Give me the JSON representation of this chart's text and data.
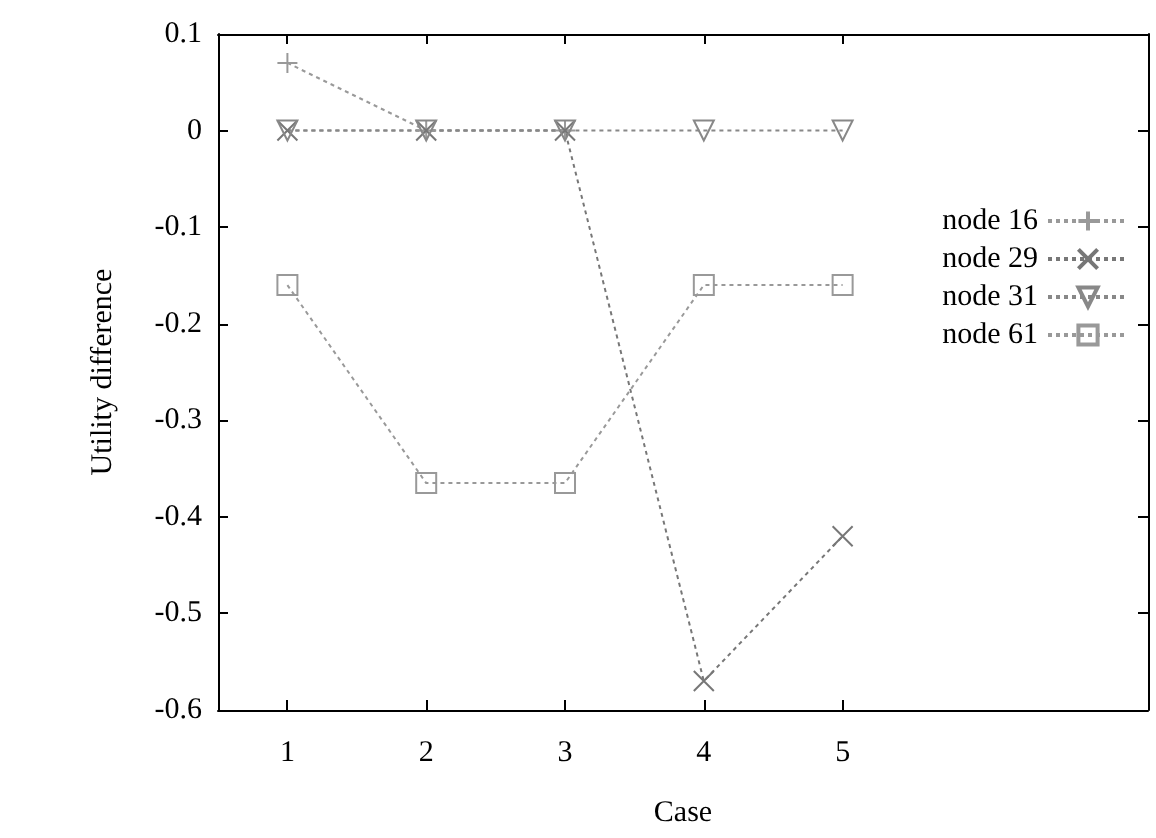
{
  "chart_data": {
    "type": "line",
    "xlabel": "Case",
    "ylabel": "Utility difference",
    "x": [
      1,
      2,
      3,
      4,
      5
    ],
    "xlim": [
      0.5,
      7.2
    ],
    "xticks": [
      1,
      2,
      3,
      4,
      5
    ],
    "ylim": [
      -0.6,
      0.1
    ],
    "yticks": [
      -0.6,
      -0.5,
      -0.4,
      -0.3,
      -0.2,
      -0.1,
      0,
      0.1
    ],
    "grid": false,
    "legend": "right",
    "line_style": "dotted",
    "series": [
      {
        "name": "node 16",
        "color": "#999999",
        "marker": "plus",
        "values": [
          0.07,
          0,
          0,
          null,
          null
        ]
      },
      {
        "name": "node 29",
        "color": "#777777",
        "marker": "cross",
        "values": [
          0,
          0,
          0,
          -0.57,
          -0.42
        ]
      },
      {
        "name": "node 31",
        "color": "#888888",
        "marker": "triangle",
        "values": [
          0,
          0,
          0,
          0,
          0
        ]
      },
      {
        "name": "node 61",
        "color": "#999999",
        "marker": "square",
        "values": [
          -0.16,
          -0.365,
          -0.365,
          -0.16,
          -0.16
        ]
      }
    ]
  }
}
